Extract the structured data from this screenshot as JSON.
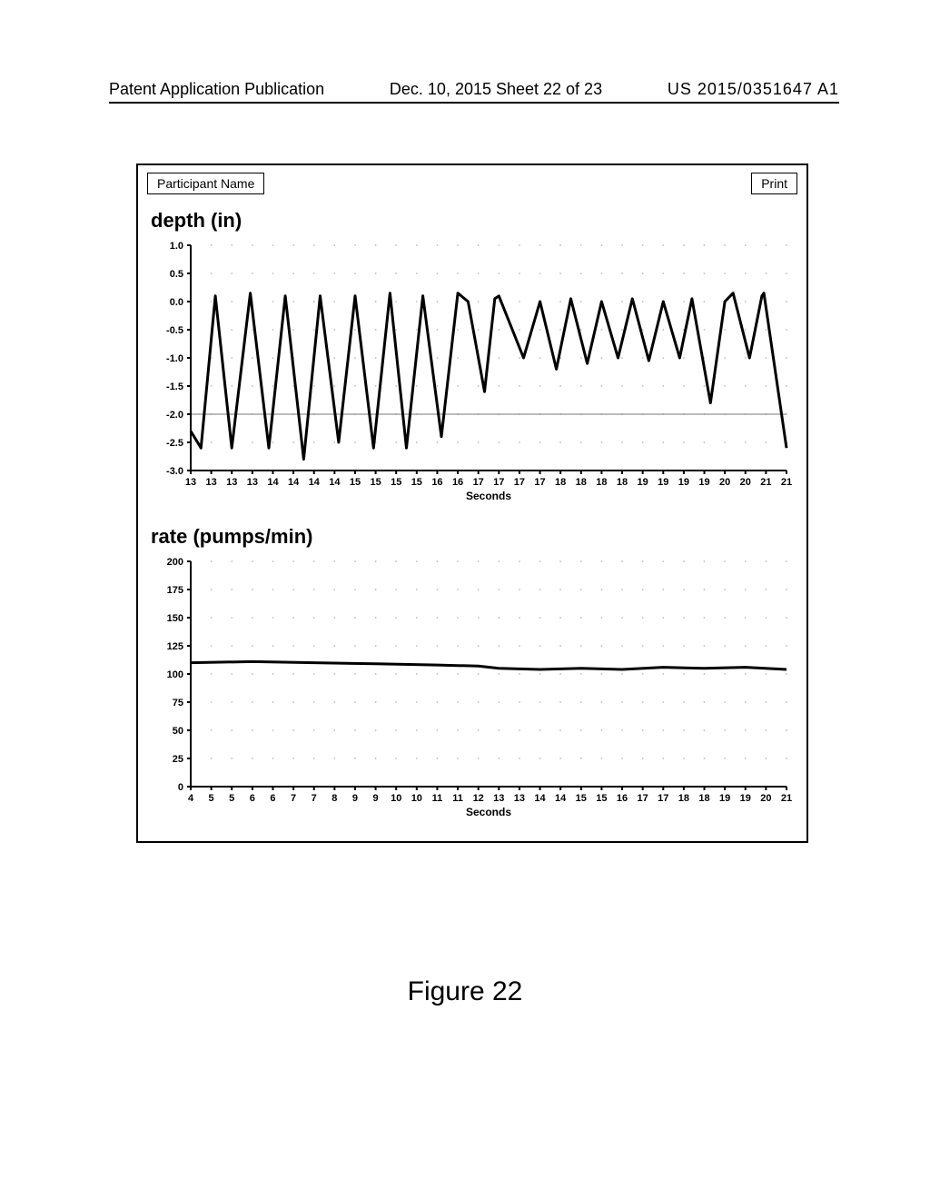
{
  "header": {
    "left": "Patent Application Publication",
    "center": "Dec. 10, 2015  Sheet 22 of 23",
    "right": "US 2015/0351647 A1"
  },
  "toolbar": {
    "participant_label": "Participant Name",
    "print_label": "Print"
  },
  "colors": {
    "background": "#ffffff",
    "axis": "#000000",
    "text": "#000000",
    "grid_dot": "#bcbcbc",
    "ref_line": "#7a7a7a",
    "data_line": "#000000"
  },
  "depth_chart": {
    "type": "line",
    "title": "depth (in)",
    "title_fontsize": 22,
    "x_axis_label": "Seconds",
    "ylim": [
      -3.0,
      1.0
    ],
    "y_ticks": [
      1.0,
      0.5,
      0.0,
      -0.5,
      -1.0,
      -1.5,
      -2.0,
      -2.5,
      -3.0
    ],
    "x_ticks": [
      "13",
      "13",
      "13",
      "13",
      "14",
      "14",
      "14",
      "14",
      "15",
      "15",
      "15",
      "15",
      "16",
      "16",
      "17",
      "17",
      "17",
      "17",
      "18",
      "18",
      "18",
      "18",
      "19",
      "19",
      "19",
      "19",
      "20",
      "20",
      "21",
      "21"
    ],
    "reference_y": -2.0,
    "line_width": 3,
    "grid_style": "dotted",
    "tick_fontsize": 11,
    "axis_label_fontsize": 12,
    "data": [
      {
        "x": 0,
        "y": -2.3
      },
      {
        "x": 0.5,
        "y": -2.6
      },
      {
        "x": 1.2,
        "y": 0.1
      },
      {
        "x": 2.0,
        "y": -2.6
      },
      {
        "x": 2.9,
        "y": 0.15
      },
      {
        "x": 3.8,
        "y": -2.6
      },
      {
        "x": 4.6,
        "y": 0.1
      },
      {
        "x": 5.5,
        "y": -2.8
      },
      {
        "x": 6.3,
        "y": 0.1
      },
      {
        "x": 7.2,
        "y": -2.5
      },
      {
        "x": 8.0,
        "y": 0.1
      },
      {
        "x": 8.9,
        "y": -2.6
      },
      {
        "x": 9.7,
        "y": 0.15
      },
      {
        "x": 10.5,
        "y": -2.6
      },
      {
        "x": 11.3,
        "y": 0.1
      },
      {
        "x": 12.2,
        "y": -2.4
      },
      {
        "x": 13.0,
        "y": 0.15
      },
      {
        "x": 13.5,
        "y": 0.0
      },
      {
        "x": 14.3,
        "y": -1.6
      },
      {
        "x": 14.8,
        "y": 0.05
      },
      {
        "x": 15.0,
        "y": 0.1
      },
      {
        "x": 16.2,
        "y": -1.0
      },
      {
        "x": 17.0,
        "y": 0.0
      },
      {
        "x": 17.8,
        "y": -1.2
      },
      {
        "x": 18.5,
        "y": 0.05
      },
      {
        "x": 19.3,
        "y": -1.1
      },
      {
        "x": 20.0,
        "y": 0.0
      },
      {
        "x": 20.8,
        "y": -1.0
      },
      {
        "x": 21.5,
        "y": 0.05
      },
      {
        "x": 22.3,
        "y": -1.05
      },
      {
        "x": 23.0,
        "y": 0.0
      },
      {
        "x": 23.8,
        "y": -1.0
      },
      {
        "x": 24.4,
        "y": 0.05
      },
      {
        "x": 25.3,
        "y": -1.8
      },
      {
        "x": 26.0,
        "y": 0.0
      },
      {
        "x": 26.4,
        "y": 0.15
      },
      {
        "x": 27.2,
        "y": -1.0
      },
      {
        "x": 27.8,
        "y": 0.1
      },
      {
        "x": 27.9,
        "y": 0.15
      },
      {
        "x": 29.0,
        "y": -2.6
      }
    ]
  },
  "rate_chart": {
    "type": "line",
    "title": "rate (pumps/min)",
    "title_fontsize": 22,
    "x_axis_label": "Seconds",
    "ylim": [
      0,
      200
    ],
    "y_ticks": [
      200,
      175,
      150,
      125,
      100,
      75,
      50,
      25,
      0
    ],
    "x_ticks": [
      "4",
      "5",
      "5",
      "6",
      "6",
      "7",
      "7",
      "8",
      "9",
      "9",
      "10",
      "10",
      "11",
      "11",
      "12",
      "13",
      "13",
      "14",
      "14",
      "15",
      "15",
      "16",
      "17",
      "17",
      "18",
      "18",
      "19",
      "19",
      "20",
      "21"
    ],
    "line_width": 3,
    "grid_style": "dotted",
    "tick_fontsize": 11,
    "axis_label_fontsize": 12,
    "data": [
      {
        "x": 0,
        "y": 110
      },
      {
        "x": 3,
        "y": 111
      },
      {
        "x": 6,
        "y": 110
      },
      {
        "x": 9,
        "y": 109
      },
      {
        "x": 12,
        "y": 108
      },
      {
        "x": 14,
        "y": 107
      },
      {
        "x": 15,
        "y": 105
      },
      {
        "x": 17,
        "y": 104
      },
      {
        "x": 19,
        "y": 105
      },
      {
        "x": 21,
        "y": 104
      },
      {
        "x": 23,
        "y": 106
      },
      {
        "x": 25,
        "y": 105
      },
      {
        "x": 27,
        "y": 106
      },
      {
        "x": 29,
        "y": 104
      }
    ]
  },
  "figure_caption": "Figure 22"
}
